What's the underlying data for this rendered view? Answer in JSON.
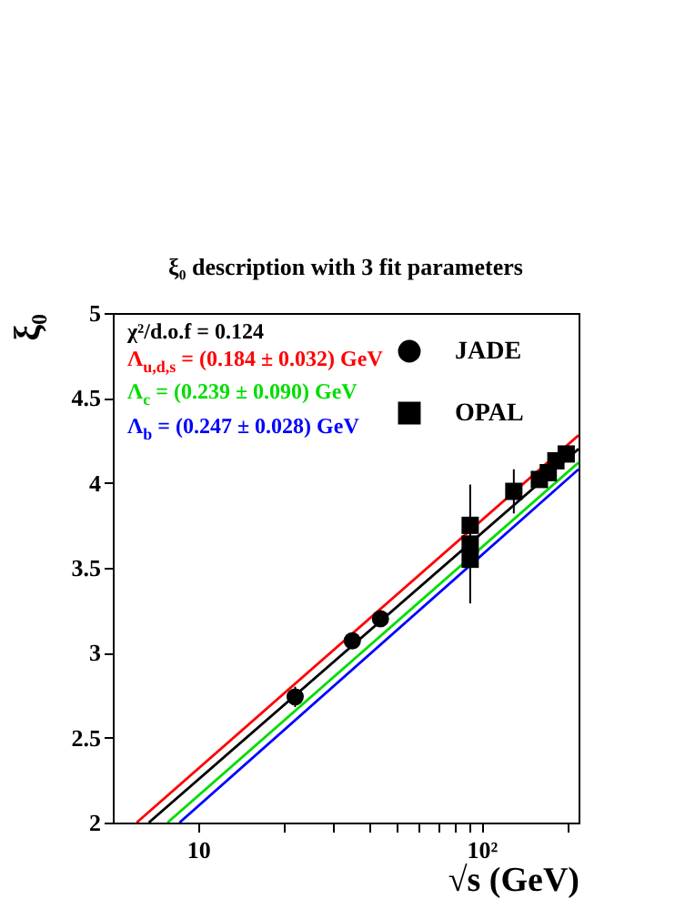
{
  "chart_data": {
    "type": "scatter",
    "title": "ξ₀ description with 3 fit parameters",
    "xlabel": "√s (GeV)",
    "ylabel": "ξ₀",
    "annotations": [
      "χ²/d.o.f = 0.124"
    ],
    "log": "x",
    "legend": "top right",
    "xlim": [
      5,
      220
    ],
    "xticks": [
      {
        "value": 10,
        "label": "10"
      },
      {
        "value": 20,
        "label": null
      },
      {
        "value": 30,
        "label": null
      },
      {
        "value": 40,
        "label": null
      },
      {
        "value": 50,
        "label": null
      },
      {
        "value": 60,
        "label": null
      },
      {
        "value": 70,
        "label": null
      },
      {
        "value": 80,
        "label": null
      },
      {
        "value": 90,
        "label": null
      },
      {
        "value": 100,
        "label": "10²"
      },
      {
        "value": 200,
        "label": null
      }
    ],
    "ylim": [
      2,
      5
    ],
    "yticks": [
      2,
      2.5,
      3,
      3.5,
      4,
      4.5,
      5
    ],
    "series": [
      {
        "type": "line",
        "name": "Λ$_{u,d,s}$ = (0.184 ±  0.032) GeV",
        "color": "#ff0000",
        "x": [
          6.07,
          220
        ],
        "values": [
          2,
          4.28
        ]
      },
      {
        "type": "line",
        "color": "#000000",
        "x": [
          6.7,
          220
        ],
        "values": [
          2,
          4.2
        ]
      },
      {
        "type": "line",
        "name": "Λ$_{c}$ = (0.239 ± 0.090) GeV",
        "color": "#00dd00",
        "x": [
          7.8,
          220
        ],
        "values": [
          2,
          4.12
        ]
      },
      {
        "type": "line",
        "name": "Λ$_{b}$ = (0.247 ± 0.028) GeV",
        "color": "#0000ff",
        "x": [
          8.6,
          220
        ],
        "values": [
          2,
          4.08
        ]
      },
      {
        "name": "JADE",
        "marker": "circle",
        "color": "#000000",
        "x": [
          22,
          35,
          44
        ],
        "values": [
          2.74,
          3.07,
          3.2
        ],
        "errors": [
          0.06,
          null,
          0.04
        ]
      },
      {
        "name": "OPAL",
        "marker": "square",
        "color": "#000000",
        "x": [
          91.2,
          91.2,
          91.2,
          130,
          160,
          172,
          183,
          199
        ],
        "values": [
          3.75,
          3.64,
          3.55,
          3.95,
          4.02,
          4.06,
          4.13,
          4.17
        ],
        "errors": [
          null,
          [
            3.29,
            3.99
          ],
          null,
          [
            3.82,
            4.08
          ],
          null,
          null,
          null,
          null
        ]
      }
    ]
  }
}
